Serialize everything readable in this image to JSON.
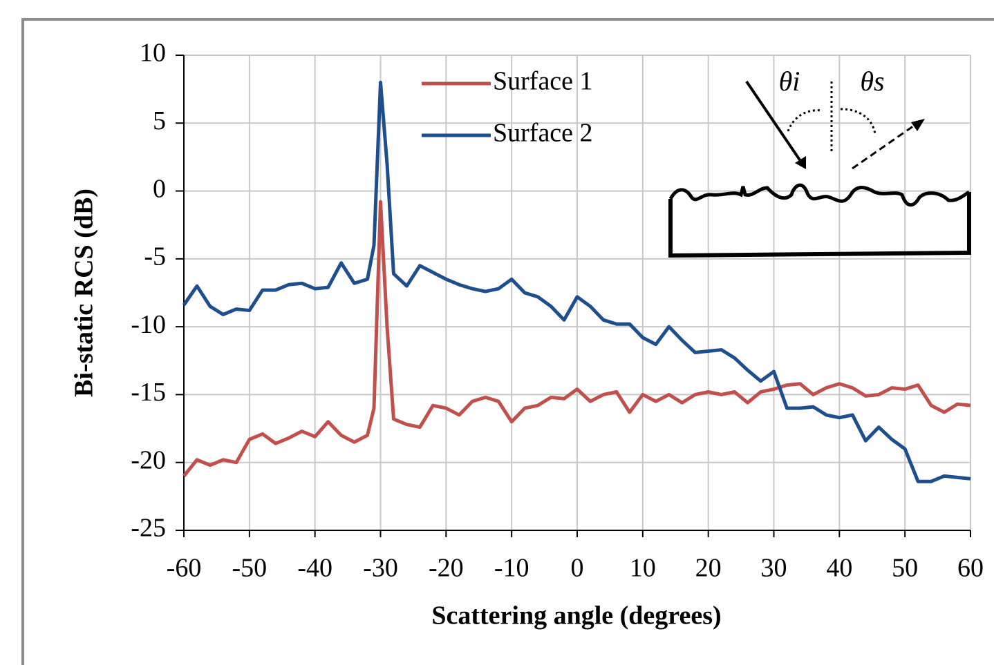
{
  "chart_data": {
    "type": "line",
    "xlabel": "Scattering angle (degrees)",
    "ylabel": "Bi-static RCS (dB)",
    "annotations": [
      "θi",
      "θs"
    ],
    "x": [
      -60,
      -58,
      -56,
      -54,
      -52,
      -50,
      -48,
      -46,
      -44,
      -42,
      -40,
      -38,
      -36,
      -34,
      -32,
      -31,
      -30,
      -29,
      -28,
      -26,
      -24,
      -22,
      -20,
      -18,
      -16,
      -14,
      -12,
      -10,
      -8,
      -6,
      -4,
      -2,
      0,
      2,
      4,
      6,
      8,
      10,
      12,
      14,
      16,
      18,
      20,
      22,
      24,
      26,
      28,
      30,
      32,
      34,
      36,
      38,
      40,
      42,
      44,
      46,
      48,
      50,
      52,
      54,
      56,
      58,
      60
    ],
    "series": [
      {
        "name": "Surface 1",
        "color": "#c0504d",
        "values": [
          -21,
          -19.8,
          -20.2,
          -19.8,
          -20,
          -18.3,
          -17.9,
          -18.6,
          -18.2,
          -17.7,
          -18.1,
          -17,
          -18,
          -18.5,
          -18,
          -16,
          -0.8,
          -10,
          -16.8,
          -17.2,
          -17.4,
          -15.8,
          -16,
          -16.5,
          -15.5,
          -15.2,
          -15.5,
          -17,
          -16,
          -15.8,
          -15.2,
          -15.3,
          -14.6,
          -15.5,
          -15,
          -14.8,
          -16.3,
          -15,
          -15.5,
          -15,
          -15.6,
          -15,
          -14.8,
          -15,
          -14.8,
          -15.6,
          -14.8,
          -14.6,
          -14.3,
          -14.2,
          -15,
          -14.5,
          -14.2,
          -14.5,
          -15.1,
          -15,
          -14.5,
          -14.6,
          -14.3,
          -15.8,
          -16.3,
          -15.7,
          -15.8
        ]
      },
      {
        "name": "Surface 2",
        "color": "#1f4e8c",
        "values": [
          -8.4,
          -7,
          -8.5,
          -9.1,
          -8.7,
          -8.8,
          -7.3,
          -7.3,
          -6.9,
          -6.8,
          -7.2,
          -7.1,
          -5.3,
          -6.8,
          -6.5,
          -4,
          8,
          2,
          -6.1,
          -7,
          -5.5,
          -6,
          -6.5,
          -6.9,
          -7.2,
          -7.4,
          -7.2,
          -6.5,
          -7.5,
          -7.8,
          -8.5,
          -9.5,
          -7.8,
          -8.5,
          -9.5,
          -9.8,
          -9.8,
          -10.8,
          -11.3,
          -10,
          -11,
          -11.9,
          -11.8,
          -11.7,
          -12.3,
          -13.2,
          -14,
          -13.3,
          -16,
          -16,
          -15.9,
          -16.5,
          -16.7,
          -16.5,
          -18.4,
          -17.4,
          -18.3,
          -19,
          -21.4,
          -21.4,
          -21,
          -21.1,
          -21.2
        ]
      }
    ],
    "xlim": [
      -60,
      60
    ],
    "xticks": [
      -60,
      -50,
      -40,
      -30,
      -20,
      -10,
      0,
      10,
      20,
      30,
      40,
      50,
      60
    ],
    "ylim": [
      -25,
      10
    ],
    "yticks": [
      -25,
      -20,
      -15,
      -10,
      -5,
      0,
      5,
      10
    ],
    "grid": true
  }
}
